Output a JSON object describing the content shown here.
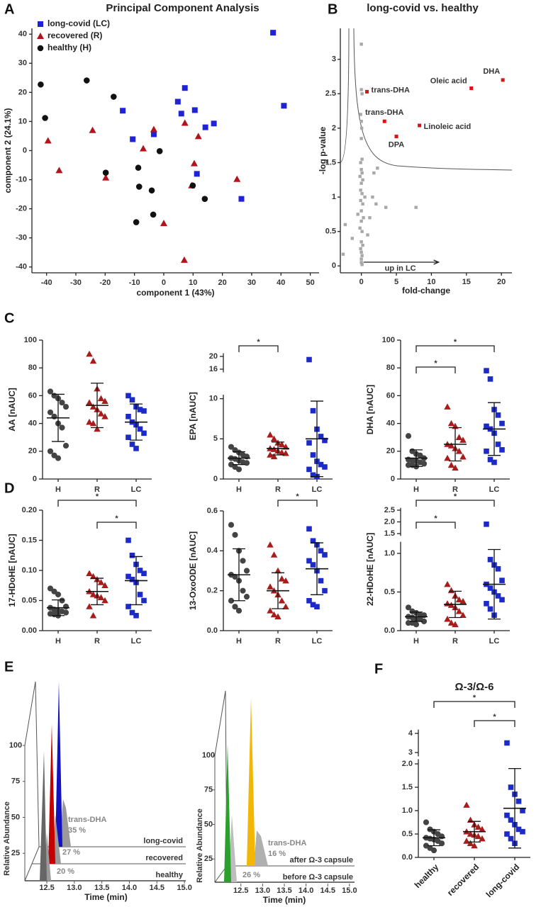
{
  "panels": [
    "A",
    "B",
    "C",
    "D",
    "E",
    "F"
  ],
  "chart_data": [
    {
      "type": "scatter",
      "title": "Principal Component Analysis",
      "xlabel": "component 1 (43%)",
      "ylabel": "component 2 (24.1%)",
      "xlim": [
        -45,
        53
      ],
      "ylim": [
        -42,
        42
      ],
      "xticks": [
        -40,
        -30,
        -20,
        -10,
        0,
        10,
        20,
        30,
        40,
        50
      ],
      "yticks": [
        -40,
        -30,
        -20,
        -10,
        0,
        10,
        20,
        30,
        40
      ],
      "legend": "upper left",
      "series": [
        {
          "name": "long-covid (LC)",
          "color": "#1f22d6",
          "marker": "square",
          "x": [
            37.3,
            41,
            -3.4,
            -14,
            -10.6,
            4.8,
            6,
            7.2,
            10.6,
            14.2,
            17.1,
            11.3,
            26.5
          ],
          "y": [
            40.5,
            15.4,
            5.6,
            13.7,
            3.9,
            16.8,
            12.7,
            21.5,
            13.9,
            8,
            9.3,
            -8,
            -16.6
          ]
        },
        {
          "name": "recovered (R)",
          "color": "#b3141c",
          "marker": "triangle",
          "x": [
            -39.5,
            -35.7,
            -24.3,
            -19.8,
            -7,
            -3.4,
            7.2,
            11.8,
            10.4,
            25,
            0,
            7,
            9.5
          ],
          "y": [
            3.4,
            -6.8,
            7,
            -9.3,
            0.7,
            7.3,
            9.5,
            4.9,
            -4.4,
            -9.8,
            -25,
            -37.6,
            -12
          ]
        },
        {
          "name": "healthy (H)",
          "color": "#111111",
          "marker": "circle",
          "x": [
            -42,
            -40.5,
            -26.3,
            -17.1,
            -19.8,
            -8.7,
            -8.4,
            -1.4,
            -4.1,
            -3.6,
            -9.4,
            9.9,
            14
          ],
          "y": [
            22.7,
            11.2,
            24.1,
            18.5,
            -7.6,
            -5.9,
            -12.4,
            -0.2,
            -13.7,
            -22,
            -24.6,
            -12,
            -16.6
          ]
        }
      ]
    },
    {
      "type": "volcano",
      "title": "long-covid vs. healthy",
      "xlabel": "fold-change",
      "ylabel": "-log p-value",
      "annotation": "up in LC",
      "xlim": [
        -3,
        21.5
      ],
      "ylim": [
        -0.1,
        3.45
      ],
      "xticks": [
        0,
        5,
        10,
        15,
        20
      ],
      "yticks": [
        0,
        0.5,
        1,
        1.5,
        2,
        2.5,
        3
      ],
      "background": {
        "color": "#a8a8a8",
        "x": [
          0,
          0,
          0.1,
          -0.1,
          0,
          0.05,
          0,
          0.1,
          -0.1,
          0,
          0.1,
          -0.2,
          0.2,
          0,
          1.8,
          2.3,
          -0.1,
          0.1,
          0.5,
          3.5,
          7.8,
          -0.1,
          0.2,
          0,
          -0.5,
          0.3,
          0,
          1.2,
          -2.3,
          -0.2,
          0.1,
          0.9,
          -1.3,
          0,
          -2.6,
          0.2,
          -0.1,
          0,
          0.1,
          0,
          0,
          0.1,
          2.1,
          1.6
        ],
        "y": [
          3.22,
          2.56,
          2.5,
          2.2,
          2.1,
          2.0,
          1.85,
          1.55,
          1.5,
          1.4,
          1.35,
          1.3,
          1.25,
          1.2,
          1.35,
          1.42,
          1.1,
          1.05,
          1.0,
          0.85,
          0.85,
          0.95,
          0.9,
          0.8,
          0.75,
          0.7,
          0.65,
          0.7,
          0.6,
          0.55,
          0.5,
          0.45,
          0.4,
          0.35,
          0.17,
          0.3,
          0.25,
          0.2,
          0.15,
          0.1,
          0.05,
          0.02,
          0.9,
          1.0
        ]
      },
      "highlight": {
        "color": "#dd1111",
        "x": [
          0.8,
          3.3,
          5,
          8.3,
          15.7,
          20.2
        ],
        "y": [
          2.53,
          2.1,
          1.88,
          2.04,
          2.58,
          2.7
        ],
        "labels": [
          "trans-DHA",
          "trans-DHA",
          "DPA",
          "Linoleic acid",
          "Oleic acid",
          "DHA"
        ]
      }
    },
    {
      "type": "dotplot",
      "ylabel": "AA [nAUC]",
      "categories": [
        "H",
        "R",
        "LC"
      ],
      "colors": [
        "#444444",
        "#a81c1c",
        "#1c2bc8"
      ],
      "markers": [
        "circle",
        "triangle",
        "square"
      ],
      "values": [
        [
          63,
          60,
          58,
          55,
          52,
          48,
          45,
          40,
          37,
          24,
          20,
          17,
          15
        ],
        [
          90,
          85,
          65,
          58,
          56,
          55,
          52,
          50,
          47,
          45,
          41,
          40,
          36
        ],
        [
          60,
          57,
          52,
          50,
          49,
          45,
          41,
          39,
          36,
          33,
          30,
          25,
          22
        ]
      ],
      "means": [
        44,
        53,
        41
      ],
      "sd": [
        17,
        16,
        13
      ],
      "ylim": [
        0,
        100
      ],
      "yticks": [
        0,
        20,
        40,
        60,
        80,
        100
      ],
      "significance": []
    },
    {
      "type": "dotplot",
      "ylabel": "EPA [nAUC]",
      "categories": [
        "H",
        "R",
        "LC"
      ],
      "colors": [
        "#444444",
        "#a81c1c",
        "#1c2bc8"
      ],
      "markers": [
        "circle",
        "triangle",
        "square"
      ],
      "values": [
        [
          4,
          3.6,
          3.3,
          3,
          2.8,
          2.6,
          2.5,
          2.3,
          2.1,
          2,
          1.8,
          1.5,
          1.2
        ],
        [
          5.5,
          5,
          4.5,
          4.3,
          4,
          3.8,
          3.7,
          3.5,
          3.3,
          3.2,
          3,
          2.8
        ],
        [
          19,
          8.5,
          6.2,
          5.3,
          4.8,
          4.5,
          3,
          2.2,
          1.8,
          1.5,
          1.2,
          0.5,
          0.3
        ]
      ],
      "means": [
        2.6,
        3.8,
        5
      ],
      "sd": [
        0.8,
        0.8,
        4.7
      ],
      "ylim": [
        0,
        10.5
      ],
      "yticks": [
        0,
        5,
        10
      ],
      "ylim_upper": [
        15,
        21
      ],
      "yticks_upper": [
        16,
        20
      ],
      "significance": [
        {
          "between": [
            "H",
            "R"
          ],
          "label": "*"
        }
      ]
    },
    {
      "type": "dotplot",
      "ylabel": "DHA [nAUC]",
      "categories": [
        "H",
        "R",
        "LC"
      ],
      "colors": [
        "#444444",
        "#a81c1c",
        "#1c2bc8"
      ],
      "markers": [
        "circle",
        "triangle",
        "square"
      ],
      "values": [
        [
          31,
          20,
          18,
          17,
          15,
          14,
          13,
          13,
          12,
          11,
          10,
          10,
          9
        ],
        [
          52,
          40,
          38,
          30,
          28,
          25,
          24,
          22,
          20,
          16,
          15,
          10,
          8
        ],
        [
          78,
          72,
          50,
          46,
          40,
          38,
          36,
          33,
          25,
          21,
          20,
          14,
          12
        ]
      ],
      "means": [
        15,
        25,
        36
      ],
      "sd": [
        6,
        12,
        19
      ],
      "ylim": [
        0,
        100
      ],
      "yticks": [
        0,
        20,
        40,
        60,
        80,
        100
      ],
      "significance": [
        {
          "between": [
            "H",
            "LC"
          ],
          "label": "*"
        },
        {
          "between": [
            "H",
            "R"
          ],
          "label": "*"
        }
      ]
    },
    {
      "type": "dotplot",
      "ylabel": "17-HDoHE [nAUC]",
      "categories": [
        "H",
        "R",
        "LC"
      ],
      "colors": [
        "#444444",
        "#a81c1c",
        "#1c2bc8"
      ],
      "markers": [
        "circle",
        "triangle",
        "square"
      ],
      "values": [
        [
          0.07,
          0.065,
          0.06,
          0.05,
          0.04,
          0.038,
          0.035,
          0.033,
          0.032,
          0.03,
          0.028,
          0.027,
          0.025
        ],
        [
          0.095,
          0.09,
          0.085,
          0.08,
          0.075,
          0.065,
          0.06,
          0.058,
          0.055,
          0.05,
          0.04,
          0.025
        ],
        [
          0.15,
          0.125,
          0.11,
          0.1,
          0.095,
          0.09,
          0.085,
          0.08,
          0.06,
          0.05,
          0.04,
          0.03,
          0.025
        ]
      ],
      "means": [
        0.038,
        0.065,
        0.083
      ],
      "sd": [
        0.013,
        0.022,
        0.04
      ],
      "ylim": [
        0,
        0.2
      ],
      "yticks": [
        {
          "value": 0,
          "label": "0.00"
        },
        {
          "value": 0.05,
          "label": "0.05"
        },
        {
          "value": 0.1,
          "label": "0.10"
        },
        {
          "value": 0.15,
          "label": "0.15"
        },
        {
          "value": 0.2,
          "label": "0.20"
        }
      ],
      "significance": [
        {
          "between": [
            "H",
            "LC"
          ],
          "label": "*"
        },
        {
          "between": [
            "R",
            "LC"
          ],
          "label": "*"
        }
      ]
    },
    {
      "type": "dotplot",
      "ylabel": "13-OxoODE [nAUC]",
      "categories": [
        "H",
        "R",
        "LC"
      ],
      "colors": [
        "#444444",
        "#a81c1c",
        "#1c2bc8"
      ],
      "markers": [
        "circle",
        "triangle",
        "square"
      ],
      "values": [
        [
          0.53,
          0.48,
          0.4,
          0.35,
          0.3,
          0.28,
          0.27,
          0.25,
          0.2,
          0.17,
          0.15,
          0.12,
          0.1
        ],
        [
          0.43,
          0.38,
          0.3,
          0.26,
          0.25,
          0.22,
          0.2,
          0.18,
          0.15,
          0.12,
          0.1,
          0.08,
          0.07
        ],
        [
          0.51,
          0.45,
          0.43,
          0.4,
          0.38,
          0.35,
          0.33,
          0.3,
          0.25,
          0.2,
          0.15,
          0.13,
          0.12
        ]
      ],
      "means": [
        0.28,
        0.2,
        0.31
      ],
      "sd": [
        0.13,
        0.09,
        0.13
      ],
      "ylim": [
        0,
        0.6
      ],
      "yticks": [
        {
          "value": 0,
          "label": "0.0"
        },
        0.2,
        0.4,
        0.6
      ],
      "significance": [
        {
          "between": [
            "R",
            "LC"
          ],
          "label": "*"
        }
      ]
    },
    {
      "type": "dotplot",
      "ylabel": "22-HDoHE [nAUC]",
      "categories": [
        "H",
        "R",
        "LC"
      ],
      "colors": [
        "#444444",
        "#a81c1c",
        "#1c2bc8"
      ],
      "markers": [
        "circle",
        "triangle",
        "square"
      ],
      "values": [
        [
          0.3,
          0.25,
          0.23,
          0.2,
          0.2,
          0.18,
          0.17,
          0.15,
          0.15,
          0.12,
          0.1,
          0.1,
          0.08
        ],
        [
          0.6,
          0.52,
          0.45,
          0.4,
          0.38,
          0.35,
          0.33,
          0.3,
          0.25,
          0.2,
          0.15,
          0.1,
          0.08
        ],
        [
          1.9,
          0.92,
          0.85,
          0.8,
          0.65,
          0.6,
          0.55,
          0.5,
          0.45,
          0.4,
          0.35,
          0.28,
          0.2
        ]
      ],
      "means": [
        0.18,
        0.34,
        0.6
      ],
      "sd": [
        0.06,
        0.17,
        0.45
      ],
      "ylim": [
        0,
        1.15
      ],
      "yticks": [
        {
          "value": 0,
          "label": "0.0"
        },
        0.5,
        {
          "value": 1,
          "label": "1.0"
        }
      ],
      "ylim_upper": [
        1.4,
        2.6
      ],
      "yticks_upper": [
        1.5,
        {
          "value": 2,
          "label": "2.0"
        },
        2.5
      ],
      "significance": [
        {
          "between": [
            "H",
            "LC"
          ],
          "label": "*"
        },
        {
          "between": [
            "H",
            "R"
          ],
          "label": "*"
        }
      ]
    },
    {
      "type": "chromatogram",
      "ylabel": "Relative Abundance",
      "xlabel": "Time (min)",
      "xlim": [
        12.1,
        15.05
      ],
      "ylim": [
        0,
        100
      ],
      "xticks": [
        12.5,
        {
          "value": 13,
          "label": "13.0"
        },
        13.5,
        {
          "value": 14,
          "label": "14.0"
        },
        14.5,
        {
          "value": 15,
          "label": "15.0"
        }
      ],
      "yticks": [
        25,
        50,
        75,
        100
      ],
      "peak_label": "trans-DHA",
      "traces": [
        {
          "name": "long-covid",
          "annotation": "35 %"
        },
        {
          "name": "recovered",
          "annotation": "27 %"
        },
        {
          "name": "healthy",
          "annotation": "20 %"
        }
      ]
    },
    {
      "type": "chromatogram",
      "ylabel": "Relative Abundance",
      "xlabel": "Time (min)",
      "xlim": [
        11.9,
        15.1
      ],
      "ylim": [
        0,
        100
      ],
      "xticks": [
        12.5,
        {
          "value": 13,
          "label": "13.0"
        },
        13.5,
        {
          "value": 14,
          "label": "14.0"
        },
        14.5,
        {
          "value": 15,
          "label": "15.0"
        }
      ],
      "yticks": [
        25,
        50,
        75,
        100
      ],
      "peak_label": "trans-DHA",
      "traces": [
        {
          "name": "after Ω-3 capsule",
          "annotation": "16 %"
        },
        {
          "name": "before Ω-3 capsule",
          "annotation": "26 %"
        }
      ]
    },
    {
      "type": "dotplot",
      "title": "Ω-3/Ω-6",
      "categories": [
        "healthy",
        "recovered",
        "long-covid"
      ],
      "colors": [
        "#444444",
        "#a81c1c",
        "#1c2bc8"
      ],
      "markers": [
        "circle",
        "triangle",
        "square"
      ],
      "values": [
        [
          0.75,
          0.6,
          0.55,
          0.5,
          0.45,
          0.42,
          0.4,
          0.38,
          0.35,
          0.3,
          0.25,
          0.2,
          0.15
        ],
        [
          1.12,
          0.8,
          0.7,
          0.65,
          0.6,
          0.55,
          0.5,
          0.48,
          0.45,
          0.4,
          0.35,
          0.3,
          0.25
        ],
        [
          3.5,
          1.5,
          1.35,
          1.2,
          1.0,
          0.9,
          0.8,
          0.7,
          0.6,
          0.55,
          0.5,
          0.4,
          0.3
        ]
      ],
      "means": [
        0.42,
        0.55,
        1.05
      ],
      "sd": [
        0.17,
        0.22,
        0.85
      ],
      "ylim": [
        0,
        2.1
      ],
      "yticks": [
        {
          "value": 0,
          "label": "0.0"
        },
        0.5,
        {
          "value": 1,
          "label": "1.0"
        },
        1.5,
        {
          "value": 2,
          "label": "2.0"
        }
      ],
      "ylim_upper": [
        2.8,
        4.2
      ],
      "yticks_upper": [
        3,
        4
      ],
      "significance": [
        {
          "between": [
            "healthy",
            "long-covid"
          ],
          "label": "*"
        },
        {
          "between": [
            "recovered",
            "long-covid"
          ],
          "label": "*"
        }
      ]
    }
  ]
}
